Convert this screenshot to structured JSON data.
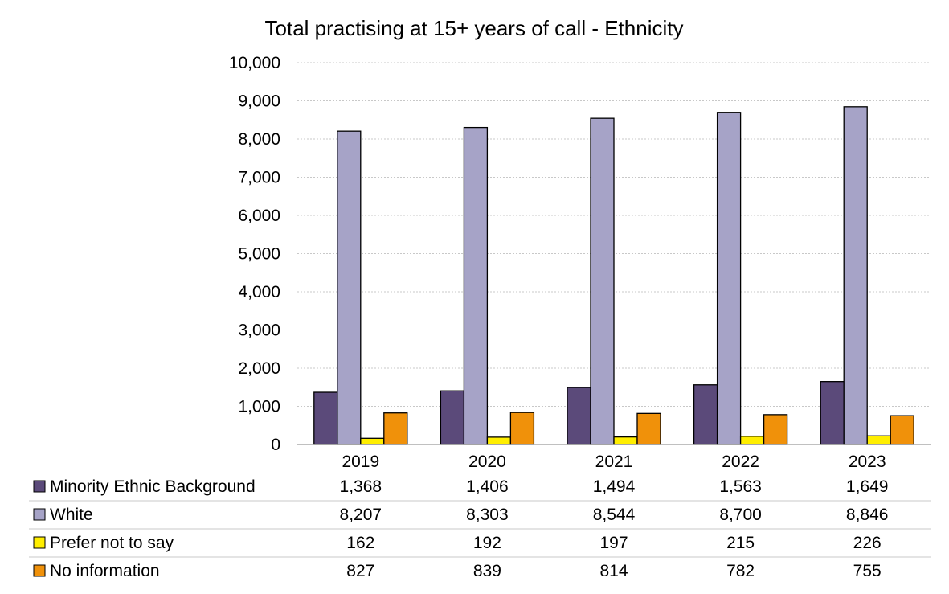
{
  "chart_data": {
    "type": "bar",
    "title": "Total practising at 15+ years of call - Ethnicity",
    "categories": [
      "2019",
      "2020",
      "2021",
      "2022",
      "2023"
    ],
    "ylim": [
      0,
      10000
    ],
    "yticks": [
      0,
      1000,
      2000,
      3000,
      4000,
      5000,
      6000,
      7000,
      8000,
      9000,
      10000
    ],
    "ytick_labels": [
      "0",
      "1,000",
      "2,000",
      "3,000",
      "4,000",
      "5,000",
      "6,000",
      "7,000",
      "8,000",
      "9,000",
      "10,000"
    ],
    "grid": true,
    "legend_placement": "data-table-below",
    "series": [
      {
        "name": "Minority Ethnic Background",
        "color": "#5b4a7a",
        "values": [
          1368,
          1406,
          1494,
          1563,
          1649
        ],
        "labels": [
          "1,368",
          "1,406",
          "1,494",
          "1,563",
          "1,649"
        ]
      },
      {
        "name": "White",
        "color": "#a6a3c7",
        "values": [
          8207,
          8303,
          8544,
          8700,
          8846
        ],
        "labels": [
          "8,207",
          "8,303",
          "8,544",
          "8,700",
          "8,846"
        ]
      },
      {
        "name": "Prefer not to say",
        "color": "#ffee00",
        "values": [
          162,
          192,
          197,
          215,
          226
        ],
        "labels": [
          "162",
          "192",
          "197",
          "215",
          "226"
        ]
      },
      {
        "name": "No information",
        "color": "#f0910a",
        "values": [
          827,
          839,
          814,
          782,
          755
        ],
        "labels": [
          "827",
          "839",
          "814",
          "782",
          "755"
        ]
      }
    ]
  }
}
